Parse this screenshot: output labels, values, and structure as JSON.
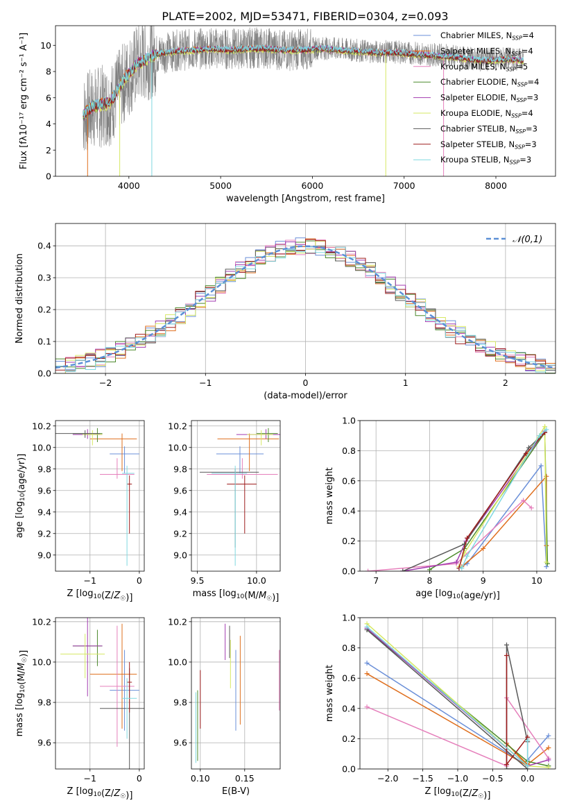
{
  "figure": {
    "title": "PLATE=2002, MJD=53471, FIBERID=0304, z=0.093"
  },
  "legend_labels": [
    {
      "pre": "Chabrier MILES, N",
      "sub": "SSP",
      "post": "=4"
    },
    {
      "pre": "Salpeter MILES, N",
      "sub": "SSP",
      "post": "=4"
    },
    {
      "pre": "Kroupa MILES, N",
      "sub": "SSP",
      "post": "=5"
    },
    {
      "pre": "Chabrier ELODIE, N",
      "sub": "SSP",
      "post": "=4"
    },
    {
      "pre": "Salpeter ELODIE, N",
      "sub": "SSP",
      "post": "=3"
    },
    {
      "pre": "Kroupa ELODIE, N",
      "sub": "SSP",
      "post": "=4"
    },
    {
      "pre": "Chabrier STELIB, N",
      "sub": "SSP",
      "post": "=3"
    },
    {
      "pre": "Salpeter STELIB, N",
      "sub": "SSP",
      "post": "=3"
    },
    {
      "pre": "Kroupa STELIB, N",
      "sub": "SSP",
      "post": "=3"
    }
  ],
  "series_colors": [
    "#6a8fd8",
    "#df6f1e",
    "#e57fbb",
    "#4c8a2c",
    "#a23bb0",
    "#d6e863",
    "#595959",
    "#9e1c1c",
    "#7fd8e0"
  ],
  "chart_data": [
    {
      "id": "spectrum",
      "type": "line",
      "title": "",
      "xlabel": "wavelength [Angstrom, rest frame]",
      "ylabel": "Flux [fλ10⁻¹⁷ erg cm⁻² s⁻¹ A⁻¹]",
      "xlim": [
        3200,
        8650
      ],
      "ylim": [
        0,
        11.5
      ],
      "xticks": [
        4000,
        5000,
        6000,
        7000,
        8000
      ],
      "yticks": [
        0,
        2,
        4,
        6,
        8,
        10
      ],
      "grid": false,
      "legend": "right",
      "data_color": "#808080",
      "data_anchor_x": [
        3500,
        3600,
        3800,
        3950,
        4100,
        4300,
        4500,
        4700,
        4900,
        5100,
        5300,
        5500,
        5700,
        5900,
        6100,
        6300,
        6500,
        6700,
        6900,
        7100,
        7300,
        7500,
        7700,
        7900,
        8100,
        8300
      ],
      "data_anchor_y": [
        4.6,
        5.2,
        5.5,
        7.2,
        8.6,
        9.3,
        9.6,
        9.7,
        9.8,
        9.7,
        9.8,
        9.8,
        9.6,
        9.7,
        9.8,
        9.7,
        9.6,
        9.5,
        9.5,
        9.4,
        9.3,
        9.2,
        9.0,
        8.9,
        9.0,
        8.9
      ],
      "model_anchor_y": [
        4.6,
        5.3,
        5.6,
        7.4,
        8.6,
        9.3,
        9.5,
        9.6,
        9.7,
        9.6,
        9.7,
        9.7,
        9.6,
        9.6,
        9.7,
        9.6,
        9.5,
        9.4,
        9.4,
        9.3,
        9.2,
        9.1,
        8.9,
        8.8,
        8.9,
        8.8
      ],
      "model_offsets": [
        0.05,
        0.1,
        -0.05,
        0.0,
        0.08,
        -0.08,
        -0.02,
        0.04,
        0.12
      ],
      "dropouts": [
        {
          "series": 5,
          "x": 3900
        },
        {
          "series": 8,
          "x": 4250
        },
        {
          "series": 5,
          "x": 6800
        },
        {
          "series": 2,
          "x": 7430
        },
        {
          "series": 1,
          "x": 3550
        }
      ]
    },
    {
      "id": "residuals",
      "type": "histogram",
      "title": "",
      "xlabel": "(data-model)/error",
      "ylabel": "Normed distribution",
      "xlim": [
        -2.5,
        2.5
      ],
      "ylim": [
        0,
        0.47
      ],
      "xticks": [
        -2,
        -1,
        0,
        1,
        2
      ],
      "yticks": [
        0.0,
        0.1,
        0.2,
        0.3,
        0.4
      ],
      "grid": true,
      "bin_width": 0.1,
      "bin_start": -2.5,
      "gaussian_label": "𝒩(0,1)",
      "gaussian_color": "#5b8fd6",
      "jitter_amplitude": 0.028
    },
    {
      "id": "age_vs_Z",
      "type": "errorbar",
      "title": "",
      "xlabel": "Z [log10(Z/Z☉)]",
      "ylabel": "age  [log10(age/yr)]",
      "xlim": [
        -1.7,
        0.1
      ],
      "ylim": [
        8.85,
        10.25
      ],
      "xticks": [
        -1,
        0
      ],
      "yticks": [
        9.0,
        9.2,
        9.4,
        9.6,
        9.8,
        10.0,
        10.2
      ],
      "grid": true,
      "points": [
        {
          "s": 0,
          "x": -0.3,
          "xerr": [
            0.3,
            0.3
          ],
          "y": 9.94,
          "yerr": [
            0.18,
            0.07
          ]
        },
        {
          "s": 1,
          "x": -0.35,
          "xerr": [
            0.65,
            0.3
          ],
          "y": 10.08,
          "yerr": [
            0.3,
            0.05
          ]
        },
        {
          "s": 2,
          "x": -0.45,
          "xerr": [
            0.35,
            0.35
          ],
          "y": 9.75,
          "yerr": [
            0.04,
            0.15
          ]
        },
        {
          "s": 3,
          "x": -0.85,
          "xerr": [
            0.5,
            0.1
          ],
          "y": 10.13,
          "yerr": [
            0.08,
            0.05
          ]
        },
        {
          "s": 4,
          "x": -1.05,
          "xerr": [
            0.3,
            0.3
          ],
          "y": 10.12,
          "yerr": [
            0.04,
            0.05
          ]
        },
        {
          "s": 5,
          "x": -0.95,
          "xerr": [
            0.2,
            0.2
          ],
          "y": 10.12,
          "yerr": [
            0.1,
            0.04
          ]
        },
        {
          "s": 6,
          "x": -1.1,
          "xerr": [
            0.6,
            0.3
          ],
          "y": 10.13,
          "yerr": [
            0.04,
            0.03
          ]
        },
        {
          "s": 7,
          "x": -0.2,
          "xerr": [
            0.05,
            0.05
          ],
          "y": 9.66,
          "yerr": [
            0.46,
            0.08
          ]
        },
        {
          "s": 8,
          "x": -0.25,
          "xerr": [
            0.1,
            0.15
          ],
          "y": 9.76,
          "yerr": [
            0.86,
            0.07
          ]
        }
      ]
    },
    {
      "id": "age_vs_mass",
      "type": "errorbar",
      "title": "",
      "xlabel": "mass [log10(M/M☉)]",
      "ylabel": "",
      "xlim": [
        9.45,
        10.2
      ],
      "ylim": [
        8.85,
        10.25
      ],
      "xticks": [
        9.5,
        10.0
      ],
      "yticks": [
        9.0,
        9.2,
        9.4,
        9.6,
        9.8,
        10.0,
        10.2
      ],
      "grid": true,
      "points": [
        {
          "s": 0,
          "x": 9.86,
          "xerr": [
            0.2,
            0.2
          ],
          "y": 9.94,
          "yerr": [
            0.18,
            0.07
          ]
        },
        {
          "s": 1,
          "x": 9.94,
          "xerr": [
            0.27,
            0.25
          ],
          "y": 10.08,
          "yerr": [
            0.3,
            0.05
          ]
        },
        {
          "s": 2,
          "x": 9.88,
          "xerr": [
            0.3,
            0.3
          ],
          "y": 9.75,
          "yerr": [
            0.04,
            0.15
          ]
        },
        {
          "s": 3,
          "x": 10.1,
          "xerr": [
            0.1,
            0.08
          ],
          "y": 10.13,
          "yerr": [
            0.08,
            0.05
          ]
        },
        {
          "s": 4,
          "x": 10.08,
          "xerr": [
            0.25,
            0.15
          ],
          "y": 10.12,
          "yerr": [
            0.04,
            0.05
          ]
        },
        {
          "s": 5,
          "x": 10.04,
          "xerr": [
            0.12,
            0.1
          ],
          "y": 10.12,
          "yerr": [
            0.1,
            0.04
          ]
        },
        {
          "s": 6,
          "x": 9.82,
          "xerr": [
            0.3,
            0.2
          ],
          "y": 9.77,
          "yerr": [
            0.7,
            0.03
          ]
        },
        {
          "s": 7,
          "x": 9.9,
          "xerr": [
            0.15,
            0.1
          ],
          "y": 9.66,
          "yerr": [
            0.46,
            0.08
          ]
        },
        {
          "s": 8,
          "x": 9.82,
          "xerr": [
            0.2,
            0.1
          ],
          "y": 9.76,
          "yerr": [
            0.86,
            0.07
          ]
        }
      ]
    },
    {
      "id": "massweight_vs_age",
      "type": "line",
      "title": "",
      "xlabel": "age  [log10(age/yr)]",
      "ylabel": "mass weight",
      "xlim": [
        6.7,
        10.35
      ],
      "ylim": [
        0,
        1
      ],
      "xticks": [
        7,
        8,
        9,
        10
      ],
      "yticks": [
        0.0,
        0.2,
        0.4,
        0.6,
        0.8,
        1.0
      ],
      "grid": true,
      "series": [
        {
          "s": 0,
          "x": [
            8.55,
            8.7,
            10.08,
            10.18
          ],
          "y": [
            0.02,
            0.05,
            0.7,
            0.03
          ]
        },
        {
          "s": 1,
          "x": [
            8.6,
            9.0,
            10.18,
            10.18
          ],
          "y": [
            0.03,
            0.15,
            0.63,
            0.17
          ]
        },
        {
          "s": 2,
          "x": [
            6.85,
            8.5,
            9.75,
            9.9
          ],
          "y": [
            0.0,
            0.05,
            0.47,
            0.42
          ]
        },
        {
          "s": 3,
          "x": [
            8.0,
            8.65,
            10.15,
            10.2
          ],
          "y": [
            0.01,
            0.15,
            0.92,
            0.05
          ]
        },
        {
          "s": 4,
          "x": [
            7.5,
            8.5,
            8.68,
            10.15
          ],
          "y": [
            0.0,
            0.06,
            0.2,
            0.93
          ]
        },
        {
          "s": 5,
          "x": [
            8.55,
            8.65,
            10.15,
            10.18
          ],
          "y": [
            0.03,
            0.12,
            0.96,
            0.06
          ]
        },
        {
          "s": 6,
          "x": [
            7.5,
            8.65,
            9.85,
            10.15
          ],
          "y": [
            0.0,
            0.18,
            0.82,
            0.92
          ]
        },
        {
          "s": 7,
          "x": [
            8.55,
            8.7,
            9.8,
            10.15
          ],
          "y": [
            0.02,
            0.22,
            0.78,
            0.92
          ]
        },
        {
          "s": 8,
          "x": [
            8.6,
            8.7,
            10.05,
            10.18
          ],
          "y": [
            0.02,
            0.1,
            0.9,
            0.94
          ]
        }
      ]
    },
    {
      "id": "mass_vs_Z",
      "type": "errorbar",
      "title": "",
      "xlabel": "Z [log10(Z/Z☉)]",
      "ylabel": "mass [log10(M/M☉)]",
      "xlim": [
        -1.7,
        0.1
      ],
      "ylim": [
        9.47,
        10.22
      ],
      "xticks": [
        -1,
        0
      ],
      "yticks": [
        9.6,
        9.8,
        10.0,
        10.2
      ],
      "grid": true,
      "points": [
        {
          "s": 0,
          "x": -0.3,
          "xerr": [
            0.3,
            0.3
          ],
          "y": 9.86,
          "yerr": [
            0.2,
            0.2
          ]
        },
        {
          "s": 1,
          "x": -0.35,
          "xerr": [
            0.65,
            0.3
          ],
          "y": 9.94,
          "yerr": [
            0.27,
            0.25
          ]
        },
        {
          "s": 2,
          "x": -0.45,
          "xerr": [
            0.35,
            0.35
          ],
          "y": 9.88,
          "yerr": [
            0.3,
            0.3
          ]
        },
        {
          "s": 3,
          "x": -0.85,
          "xerr": [
            0.5,
            0.1
          ],
          "y": 10.08,
          "yerr": [
            0.1,
            0.08
          ]
        },
        {
          "s": 4,
          "x": -1.05,
          "xerr": [
            0.3,
            0.3
          ],
          "y": 10.08,
          "yerr": [
            0.25,
            0.15
          ]
        },
        {
          "s": 5,
          "x": -1.1,
          "xerr": [
            0.5,
            0.4
          ],
          "y": 10.04,
          "yerr": [
            0.12,
            0.1
          ]
        },
        {
          "s": 6,
          "x": -0.2,
          "xerr": [
            0.6,
            0.3
          ],
          "y": 9.77,
          "yerr": [
            0.3,
            0.2
          ]
        },
        {
          "s": 7,
          "x": -0.2,
          "xerr": [
            0.05,
            0.05
          ],
          "y": 9.9,
          "yerr": [
            0.15,
            0.1
          ]
        },
        {
          "s": 8,
          "x": -0.25,
          "xerr": [
            0.1,
            0.2
          ],
          "y": 9.82,
          "yerr": [
            0.2,
            0.1
          ]
        }
      ]
    },
    {
      "id": "mass_vs_ebv",
      "type": "errorbar",
      "title": "",
      "xlabel": "E(B-V)",
      "ylabel": "",
      "xlim": [
        0.09,
        0.19
      ],
      "ylim": [
        9.47,
        10.22
      ],
      "xticks": [
        0.1,
        0.15
      ],
      "yticks": [
        9.6,
        9.8,
        10.0,
        10.2
      ],
      "grid": true,
      "points": [
        {
          "s": 0,
          "x": 0.14,
          "xerr": [
            0,
            0
          ],
          "y": 9.86,
          "yerr": [
            0.2,
            0.2
          ]
        },
        {
          "s": 1,
          "x": 0.145,
          "xerr": [
            0,
            0
          ],
          "y": 9.91,
          "yerr": [
            0.22,
            0.22
          ]
        },
        {
          "s": 2,
          "x": 0.189,
          "xerr": [
            0,
            0
          ],
          "y": 9.91,
          "yerr": [
            0.15,
            0.15
          ]
        },
        {
          "s": 3,
          "x": 0.097,
          "xerr": [
            0,
            0
          ],
          "y": 9.76,
          "yerr": [
            0.25,
            0.1
          ]
        },
        {
          "s": 4,
          "x": 0.128,
          "xerr": [
            0,
            0
          ],
          "y": 10.1,
          "yerr": [
            0.09,
            0.09
          ]
        },
        {
          "s": 5,
          "x": 0.134,
          "xerr": [
            0,
            0
          ],
          "y": 9.99,
          "yerr": [
            0.12,
            0.12
          ]
        },
        {
          "s": 6,
          "x": 0.133,
          "xerr": [
            0,
            0
          ],
          "y": 10.1,
          "yerr": [
            0.08,
            0.08
          ]
        },
        {
          "s": 7,
          "x": 0.1,
          "xerr": [
            0,
            0
          ],
          "y": 9.82,
          "yerr": [
            0.15,
            0.14
          ]
        },
        {
          "s": 8,
          "x": 0.095,
          "xerr": [
            0,
            0
          ],
          "y": 9.7,
          "yerr": [
            0.2,
            0.15
          ]
        }
      ]
    },
    {
      "id": "massweight_vs_Z",
      "type": "line",
      "title": "",
      "xlabel": "Z [log10(Z/Z☉)]",
      "ylabel": "mass weight",
      "xlim": [
        -2.4,
        0.4
      ],
      "ylim": [
        0,
        1
      ],
      "xticks": [
        -2.0,
        -1.5,
        -1.0,
        -0.5,
        0.0
      ],
      "yticks": [
        0.0,
        0.2,
        0.4,
        0.6,
        0.8,
        1.0
      ],
      "grid": true,
      "series": [
        {
          "s": 0,
          "x": [
            -2.3,
            0.0,
            0.0,
            0.3
          ],
          "y": [
            0.7,
            0.02,
            0.06,
            0.22
          ]
        },
        {
          "s": 1,
          "x": [
            -2.3,
            0.0,
            -0.3,
            0.0,
            0.3
          ],
          "y": [
            0.63,
            0.02,
            0.17,
            0.03,
            0.14
          ]
        },
        {
          "s": 2,
          "x": [
            -2.3,
            -0.3,
            -0.3,
            0.3
          ],
          "y": [
            0.41,
            0.02,
            0.47,
            0.07
          ]
        },
        {
          "s": 3,
          "x": [
            -2.3,
            0.0,
            0.3
          ],
          "y": [
            0.92,
            0.05,
            0.02
          ]
        },
        {
          "s": 4,
          "x": [
            -2.3,
            0.0,
            0.3
          ],
          "y": [
            0.93,
            0.02,
            0.06
          ]
        },
        {
          "s": 5,
          "x": [
            -2.3,
            0.0,
            0.3
          ],
          "y": [
            0.96,
            0.02,
            0.01
          ]
        },
        {
          "s": 6,
          "x": [
            -2.3,
            0.0,
            -0.3,
            -0.3,
            0.0
          ],
          "y": [
            0.92,
            0.0,
            0.0,
            0.82,
            0.18
          ]
        },
        {
          "s": 7,
          "x": [
            -0.3,
            -0.3,
            0.0,
            0.0
          ],
          "y": [
            0.75,
            0.03,
            0.21,
            0.02
          ]
        },
        {
          "s": 8,
          "x": [
            -2.3,
            0.0,
            0.0
          ],
          "y": [
            0.94,
            0.02,
            0.19
          ]
        }
      ]
    }
  ]
}
